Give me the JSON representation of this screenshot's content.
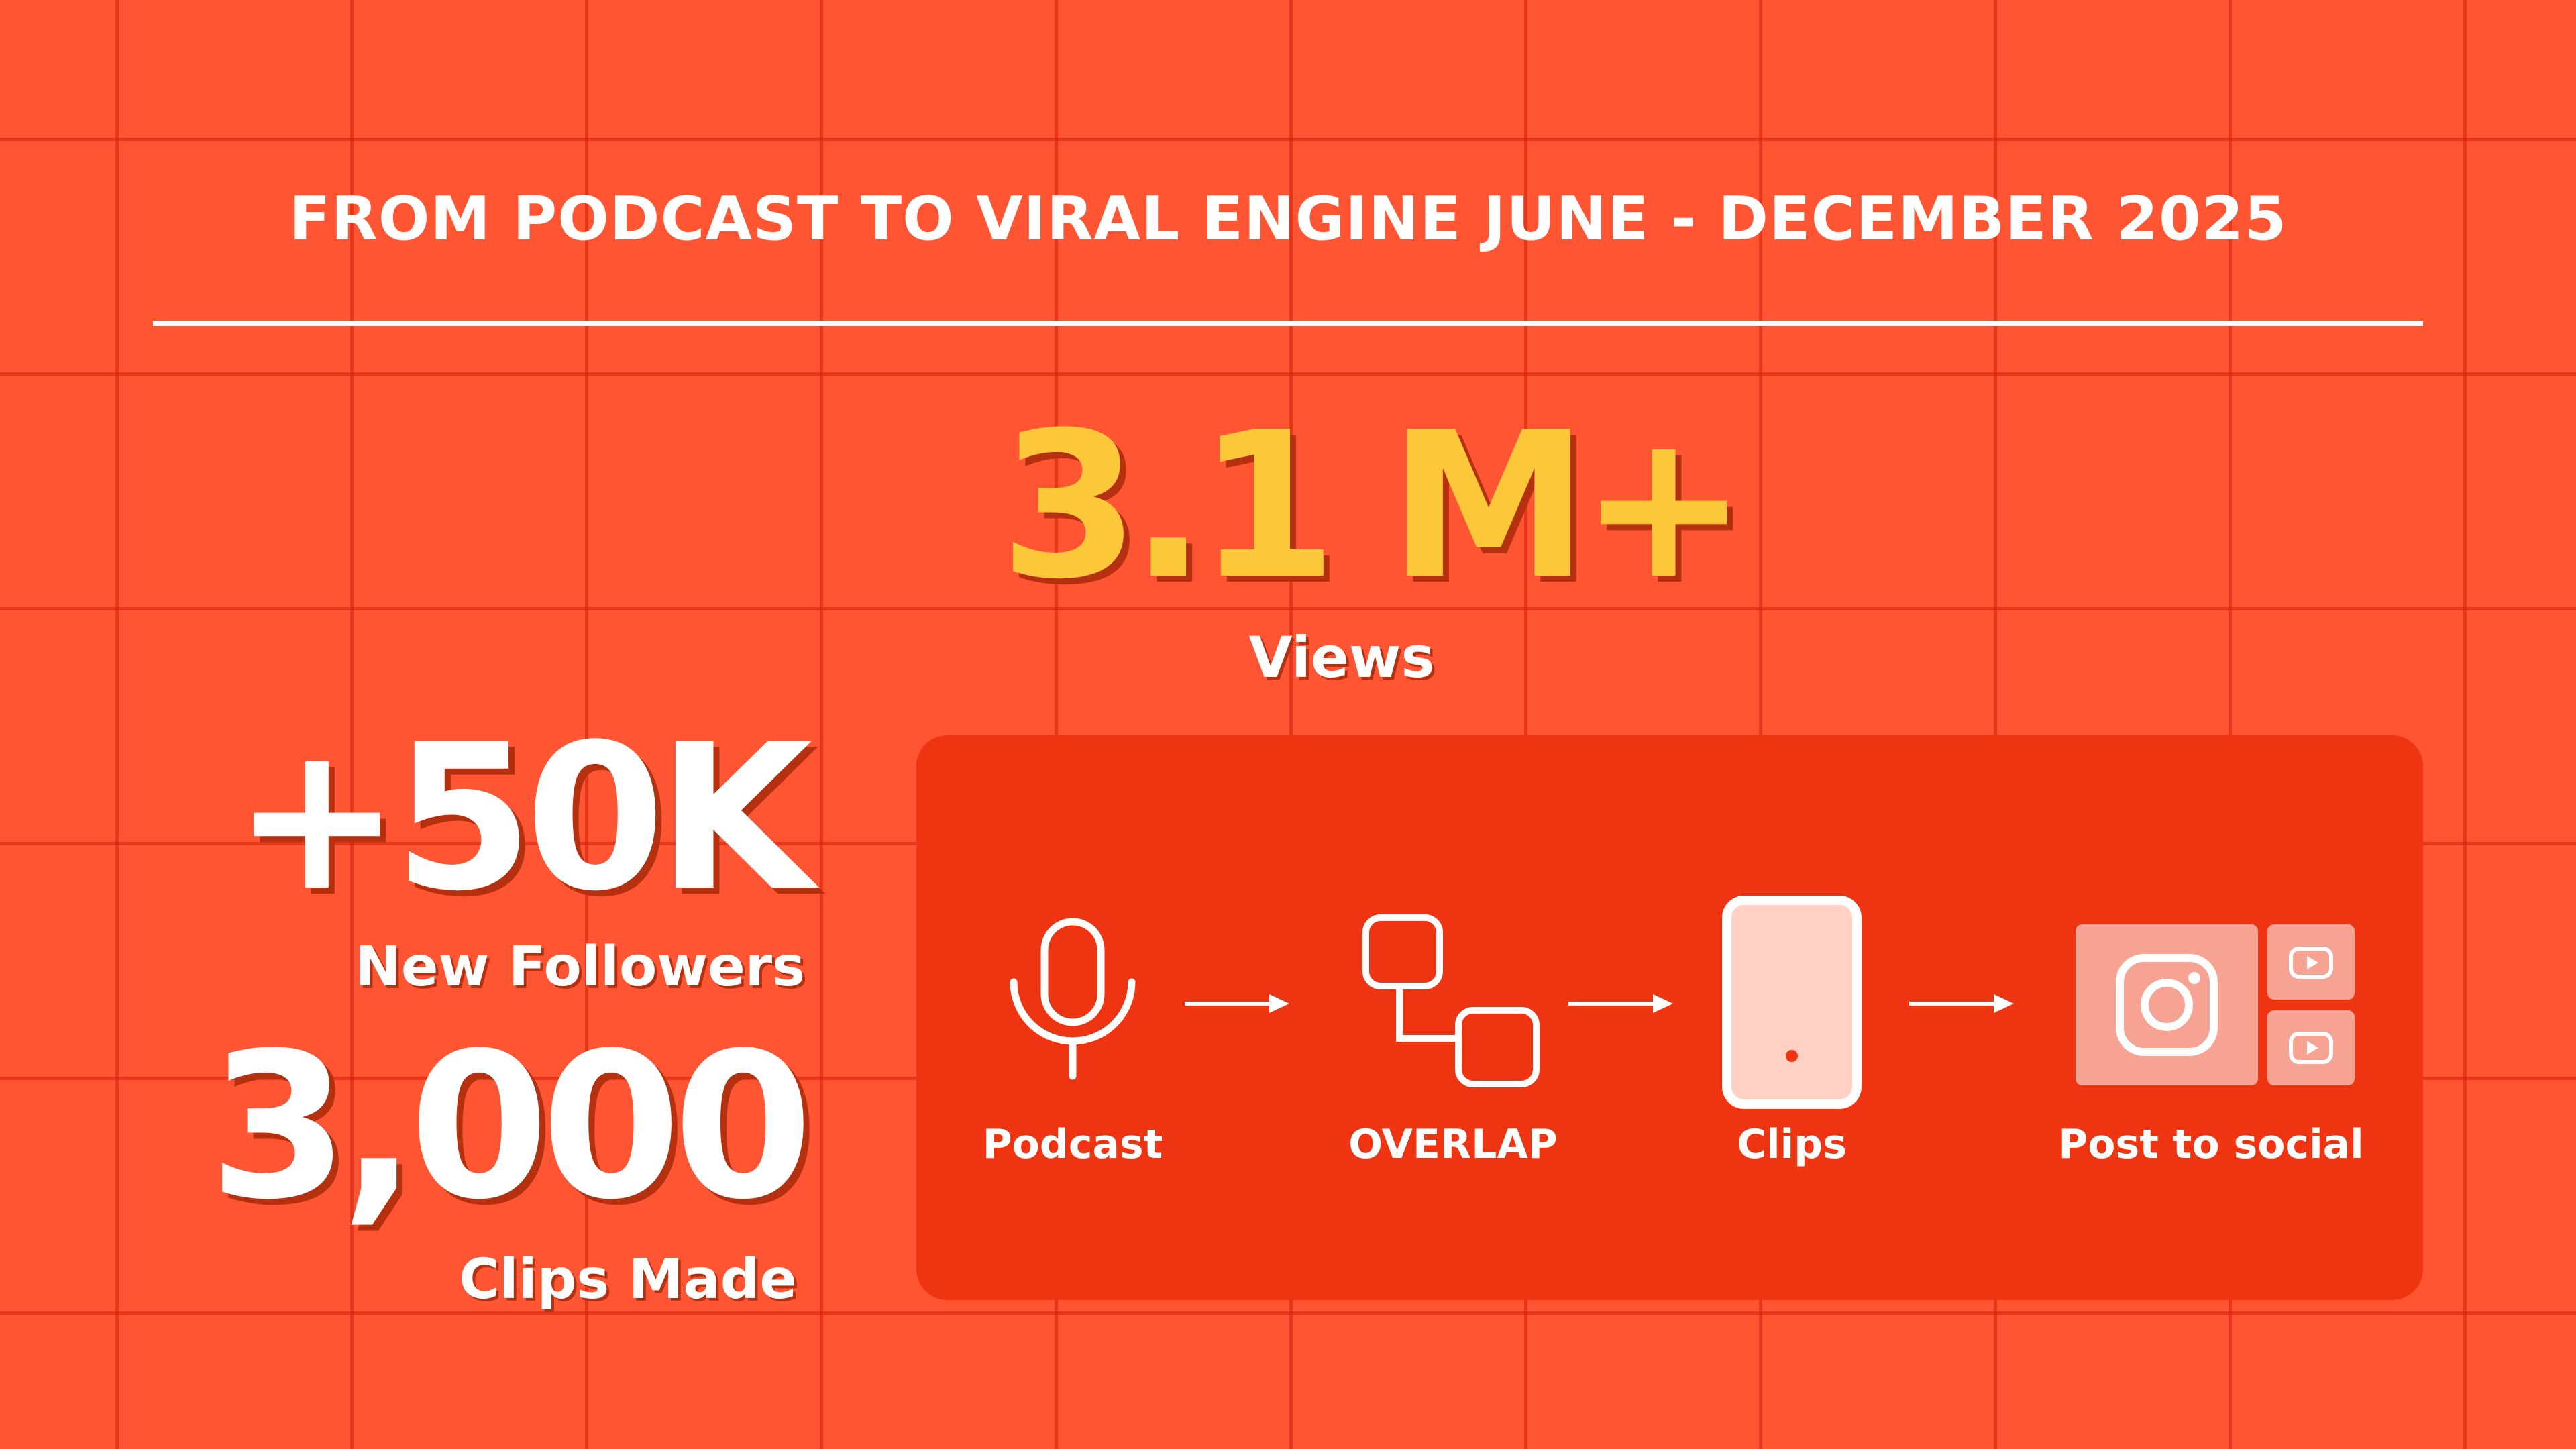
{
  "header": {
    "title": "FROM PODCAST TO VIRAL ENGINE JUNE - DECEMBER 2025"
  },
  "headline_stat": {
    "value": "3.1 M+",
    "label": "Views"
  },
  "stats": [
    {
      "value": "+50K",
      "label": "New Followers"
    },
    {
      "value": "3,000",
      "label": "Clips Made"
    }
  ],
  "workflow": {
    "steps": [
      {
        "label": "Podcast",
        "icon": "microphone-icon"
      },
      {
        "label": "OVERLAP",
        "icon": "overlap-squares-icon"
      },
      {
        "label": "Clips",
        "icon": "phone-icon"
      },
      {
        "label": "Post to social",
        "icon": "social-platforms-icon"
      }
    ]
  },
  "colors": {
    "background": "#ff5533",
    "grid_lines": "#d61e0a",
    "panel": "#ee3410",
    "accent_yellow": "#fcc83a",
    "text": "#ffffff",
    "icon_fill": "#ffd0c4"
  }
}
